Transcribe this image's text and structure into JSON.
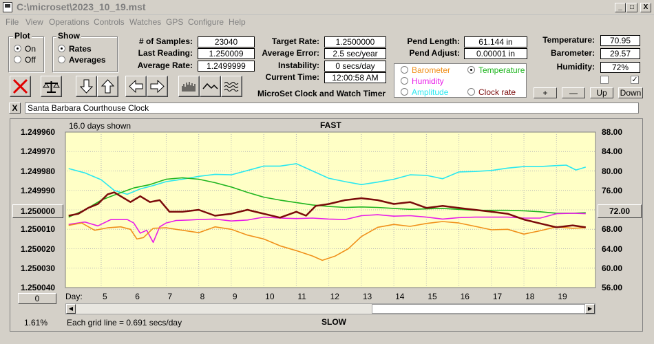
{
  "window": {
    "title": "C:\\microset\\2023_10_19.mst",
    "min": "_",
    "max": "□",
    "close": "X"
  },
  "menu": [
    "File",
    "View",
    "Operations",
    "Controls",
    "Watches",
    "GPS",
    "Configure",
    "Help"
  ],
  "plot_group": {
    "title": "Plot",
    "on": "On",
    "off": "Off",
    "selected": "On"
  },
  "show_group": {
    "title": "Show",
    "rates": "Rates",
    "averages": "Averages",
    "selected": "Rates"
  },
  "stats": {
    "samples_label": "# of Samples:",
    "samples": "23040",
    "last_reading_label": "Last Reading:",
    "last_reading": "1.250009",
    "average_rate_label": "Average Rate:",
    "average_rate": "1.2499999",
    "target_rate_label": "Target Rate:",
    "target_rate": "1.2500000",
    "average_error_label": "Average Error:",
    "average_error": "2.5 sec/year",
    "instability_label": "Instability:",
    "instability": "0 secs/day",
    "current_time_label": "Current Time:",
    "current_time": "12:00:58 AM",
    "pend_length_label": "Pend Length:",
    "pend_length": "61.144 in",
    "pend_adjust_label": "Pend Adjust:",
    "pend_adjust": "0.00001 in",
    "temperature_label": "Temperature:",
    "temperature": "70.95",
    "barometer_label": "Barometer:",
    "barometer": "29.57",
    "humidity_label": "Humidity:",
    "humidity": "72%"
  },
  "app_caption": "MicroSet Clock and Watch Timer",
  "series_selector": {
    "barometer": "Barometer",
    "temperature": "Temperature",
    "humidity": "Humidity",
    "amplitude": "Amplitude",
    "clock_rate": "Clock rate",
    "selected": "Temperature"
  },
  "range_buttons": {
    "plus": "+",
    "minus": "—",
    "up": "Up",
    "down": "Down"
  },
  "clock_name": "Santa Barbara Courthouse Clock",
  "clear_name_button": "X",
  "chart_labels": {
    "days_shown": "16.0 days shown",
    "fast": "FAST",
    "slow": "SLOW",
    "grid_note": "Each grid line = 0.691 secs/day",
    "day_label": "Day:",
    "center_left": "1.250000",
    "center_right": "72.00",
    "zero_button": "0",
    "percent": "1.61%"
  },
  "colors": {
    "barometer": "#f0901a",
    "temperature": "#1fb51f",
    "humidity": "#e81ce8",
    "amplitude": "#29e8f0",
    "rate": "#7a0a0a",
    "plot_bg": "#ffffc6"
  },
  "chart_data": {
    "type": "line",
    "xlabel": "Day:",
    "x_ticks": [
      "5",
      "6",
      "7",
      "8",
      "9",
      "10",
      "11",
      "12",
      "13",
      "14",
      "15",
      "16",
      "17",
      "18",
      "19"
    ],
    "x_range": [
      3.9,
      20.2
    ],
    "y_left_ticks": [
      "1.249960",
      "1.249970",
      "1.249980",
      "1.249990",
      "1.250000",
      "1.250010",
      "1.250020",
      "1.250030",
      "1.250040"
    ],
    "y_left_range": [
      1.24996,
      1.25004
    ],
    "y_right_ticks": [
      "88.00",
      "84.00",
      "80.00",
      "76.00",
      "72.00",
      "68.00",
      "64.00",
      "60.00",
      "56.00"
    ],
    "y_right_range": [
      56,
      88
    ],
    "series": [
      {
        "name": "Amplitude",
        "axis": "right",
        "color": "#29e8f0",
        "x": [
          4.0,
          4.5,
          5.0,
          5.4,
          5.8,
          6.2,
          6.6,
          7.0,
          7.5,
          8.0,
          8.5,
          9.0,
          9.5,
          10.0,
          10.5,
          11.0,
          11.5,
          12.0,
          12.5,
          13.0,
          13.5,
          14.0,
          14.5,
          15.0,
          15.5,
          16.0,
          16.5,
          17.0,
          17.5,
          18.0,
          18.5,
          19.0,
          19.3,
          19.6,
          19.9
        ],
        "y": [
          80.5,
          79.6,
          78.2,
          76.0,
          75.2,
          76.3,
          77.0,
          77.8,
          78.3,
          78.9,
          79.3,
          79.2,
          80.1,
          81.0,
          81.0,
          81.5,
          80.0,
          78.5,
          77.8,
          77.2,
          77.7,
          78.3,
          79.2,
          79.1,
          78.4,
          79.8,
          79.9,
          80.1,
          80.6,
          80.9,
          80.9,
          81.1,
          81.2,
          80.2,
          80.8
        ]
      },
      {
        "name": "Temperature",
        "axis": "right",
        "color": "#1fb51f",
        "x": [
          4.0,
          4.5,
          5.0,
          5.5,
          6.0,
          6.5,
          7.0,
          7.5,
          8.0,
          8.5,
          9.0,
          9.5,
          10.0,
          10.5,
          11.0,
          11.5,
          12.0,
          12.5,
          13.0,
          13.5,
          14.0,
          14.5,
          15.0,
          15.5,
          16.0,
          16.5,
          17.0,
          17.5,
          18.0,
          18.5,
          19.0,
          19.5,
          19.9
        ],
        "y": [
          70.5,
          72.0,
          74.0,
          75.3,
          76.5,
          77.2,
          78.3,
          78.6,
          78.3,
          77.6,
          76.7,
          75.6,
          74.6,
          74.0,
          73.5,
          73.0,
          72.7,
          72.5,
          72.6,
          72.5,
          72.3,
          72.1,
          72.2,
          72.3,
          72.1,
          71.9,
          71.9,
          71.9,
          71.8,
          71.6,
          71.3,
          71.3,
          71.4
        ]
      },
      {
        "name": "Humidity",
        "axis": "right",
        "color": "#e81ce8",
        "x": [
          4.0,
          4.5,
          4.9,
          5.3,
          5.8,
          6.0,
          6.2,
          6.4,
          6.6,
          6.8,
          7.0,
          7.3,
          7.7,
          8.0,
          8.5,
          9.0,
          9.5,
          10.0,
          10.5,
          11.0,
          11.5,
          12.0,
          12.5,
          13.0,
          13.5,
          14.0,
          14.5,
          15.0,
          15.5,
          16.0,
          16.5,
          17.0,
          17.5,
          18.0,
          18.5,
          19.0,
          19.5,
          19.9
        ],
        "y": [
          69.0,
          69.5,
          68.7,
          70.0,
          70.0,
          69.3,
          67.2,
          67.8,
          65.3,
          68.5,
          69.3,
          69.8,
          69.9,
          70.0,
          70.1,
          69.7,
          69.9,
          70.5,
          70.3,
          70.2,
          70.3,
          70.1,
          70.0,
          70.8,
          71.0,
          70.7,
          70.8,
          70.5,
          70.1,
          70.4,
          70.5,
          70.5,
          70.5,
          70.3,
          70.3,
          71.2,
          71.3,
          71.2
        ]
      },
      {
        "name": "Barometer",
        "axis": "right",
        "color": "#f0901a",
        "x": [
          4.0,
          4.4,
          4.8,
          5.2,
          5.6,
          5.9,
          6.1,
          6.3,
          6.6,
          7.0,
          7.5,
          8.0,
          8.5,
          9.0,
          9.5,
          10.0,
          10.5,
          11.0,
          11.5,
          11.8,
          12.2,
          12.6,
          13.0,
          13.5,
          14.0,
          14.5,
          15.0,
          15.5,
          16.0,
          16.5,
          17.0,
          17.5,
          18.0,
          18.5,
          19.0,
          19.5,
          19.9
        ],
        "y": [
          68.8,
          69.3,
          67.8,
          68.3,
          68.5,
          68.0,
          66.0,
          66.3,
          68.2,
          68.3,
          67.8,
          67.3,
          68.5,
          68.0,
          66.8,
          66.0,
          64.6,
          63.6,
          62.5,
          61.6,
          62.5,
          64.0,
          66.5,
          68.4,
          69.0,
          68.6,
          69.2,
          69.6,
          69.3,
          68.6,
          67.9,
          68.0,
          67.0,
          67.7,
          68.5,
          68.2,
          68.3
        ]
      },
      {
        "name": "Rate",
        "axis": "left",
        "color": "#7a0a0a",
        "x": [
          4.0,
          4.3,
          4.6,
          4.9,
          5.2,
          5.4,
          5.6,
          5.9,
          6.2,
          6.5,
          6.8,
          7.1,
          7.5,
          8.0,
          8.5,
          9.0,
          9.5,
          10.0,
          10.5,
          11.0,
          11.3,
          11.6,
          12.0,
          12.5,
          13.0,
          13.5,
          14.0,
          14.5,
          15.0,
          15.5,
          16.0,
          16.5,
          17.0,
          17.5,
          18.0,
          18.5,
          19.0,
          19.5,
          19.9
        ],
        "y": [
          1.250003,
          1.250002,
          1.249999,
          1.249997,
          1.249992,
          1.249991,
          1.249993,
          1.249996,
          1.249993,
          1.249996,
          1.249995,
          1.250001,
          1.250001,
          1.25,
          1.250003,
          1.250002,
          1.25,
          1.250002,
          1.250004,
          1.250001,
          1.250003,
          1.249998,
          1.249997,
          1.249995,
          1.249994,
          1.249995,
          1.249997,
          1.249996,
          1.249999,
          1.249998,
          1.249999,
          1.25,
          1.250001,
          1.250002,
          1.250005,
          1.250007,
          1.250009,
          1.250008,
          1.250009
        ]
      }
    ]
  }
}
